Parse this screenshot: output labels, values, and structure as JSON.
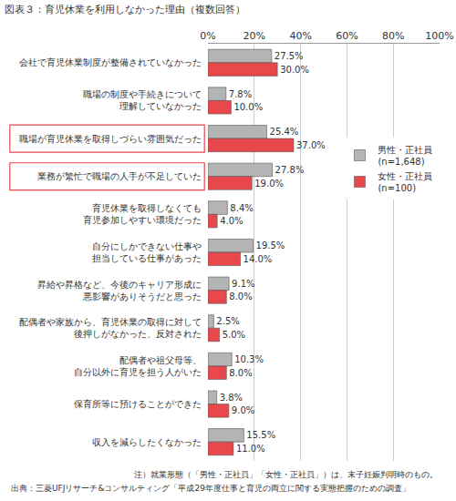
{
  "chart_data": {
    "type": "bar",
    "orientation": "horizontal",
    "title": "図表３：育児休業を利用しなかった理由（複数回答）",
    "categories": [
      "会社で育児休業制度が整備されていなかった",
      "職場の制度や手続きについて\n理解していなかった",
      "職場が育児休業を取得しづらい雰囲気だった",
      "業務が繁忙で職場の人手が不足していた",
      "育児休業を取得しなくても\n育児参加しやすい環境だった",
      "自分にしかできない仕事や\n担当している仕事があった",
      "昇給や昇格など、今後のキャリア形成に\n悪影響がありそうだと思った",
      "配偶者や家族から、育児休業の取得に対して\n後押しがなかった、反対された",
      "配偶者や祖父母等、\n自分以外に育児を担う人がいた",
      "保育所等に預けることができた",
      "収入を減らしたくなかった"
    ],
    "series": [
      {
        "name": "男性・正社員\n(n=1,648)",
        "color": "#b4b4b4",
        "values": [
          27.5,
          7.8,
          25.4,
          27.8,
          8.4,
          19.5,
          9.1,
          2.5,
          10.3,
          3.8,
          15.5
        ],
        "value_labels": [
          "27.5%",
          "7.8%",
          "25.4%",
          "27.8%",
          "8.4%",
          "19.5%",
          "9.1%",
          "2.5%",
          "10.3%",
          "3.8%",
          "15.5%"
        ]
      },
      {
        "name": "女性・正社員\n(n=100)",
        "color": "#e8474c",
        "values": [
          30.0,
          10.0,
          37.0,
          19.0,
          4.0,
          14.0,
          8.0,
          5.0,
          8.0,
          9.0,
          11.0
        ],
        "value_labels": [
          "30.0%",
          "10.0%",
          "37.0%",
          "19.0%",
          "4.0%",
          "14.0%",
          "8.0%",
          "5.0%",
          "8.0%",
          "9.0%",
          "11.0%"
        ]
      }
    ],
    "xlim": [
      0,
      100
    ],
    "xticks": [
      {
        "value": 0,
        "label": "0%"
      },
      {
        "value": 20,
        "label": "20%"
      },
      {
        "value": 40,
        "label": "40%"
      },
      {
        "value": 60,
        "label": "60%"
      },
      {
        "value": 80,
        "label": "80%"
      },
      {
        "value": 100,
        "label": "100%"
      }
    ],
    "grid": true,
    "data_labels": true,
    "legend": "right",
    "notes": [
      "注）就業形態（「男性・正社員」「女性・正社員」）は、末子妊娠判明時のもの。",
      "出典：三菱UFJリサーチ&コンサルティング「平成29年度仕事と育児の両立に関する実態把握のための調査」"
    ]
  }
}
